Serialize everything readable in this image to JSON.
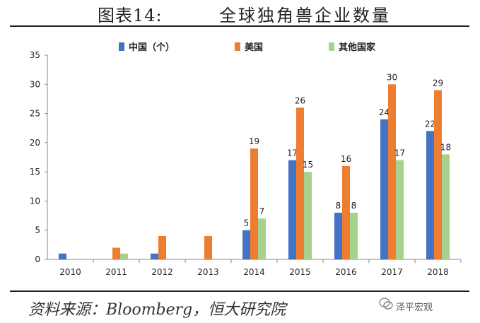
{
  "header": {
    "figure_label": "图表14:",
    "title": "全球独角兽企业数量"
  },
  "footer": {
    "source": "资料来源：Bloomberg，恒大研究院",
    "watermark": "泽平宏观"
  },
  "colors": {
    "china": "#4472c4",
    "usa": "#ed7d31",
    "other": "#a9d18e"
  },
  "chart_data": {
    "type": "bar",
    "categories": [
      "2010",
      "2011",
      "2012",
      "2013",
      "2014",
      "2015",
      "2016",
      "2017",
      "2018"
    ],
    "series": [
      {
        "name": "中国（个）",
        "values": [
          1,
          0,
          1,
          0,
          5,
          17,
          8,
          24,
          22
        ],
        "labels": [
          null,
          null,
          null,
          null,
          "5",
          "17",
          "8",
          "24",
          "22"
        ]
      },
      {
        "name": "美国",
        "values": [
          0,
          2,
          4,
          4,
          19,
          26,
          16,
          30,
          29
        ],
        "labels": [
          null,
          null,
          null,
          null,
          "19",
          "26",
          "16",
          "30",
          "29"
        ]
      },
      {
        "name": "其他国家",
        "values": [
          0,
          1,
          0,
          0,
          7,
          15,
          8,
          17,
          18
        ],
        "labels": [
          null,
          null,
          null,
          null,
          "7",
          "15",
          "8",
          "17",
          "18"
        ]
      }
    ],
    "ylim": [
      0,
      35
    ],
    "yticks": [
      "0",
      "5",
      "10",
      "15",
      "20",
      "25",
      "30",
      "35"
    ],
    "legend_position": "top"
  }
}
